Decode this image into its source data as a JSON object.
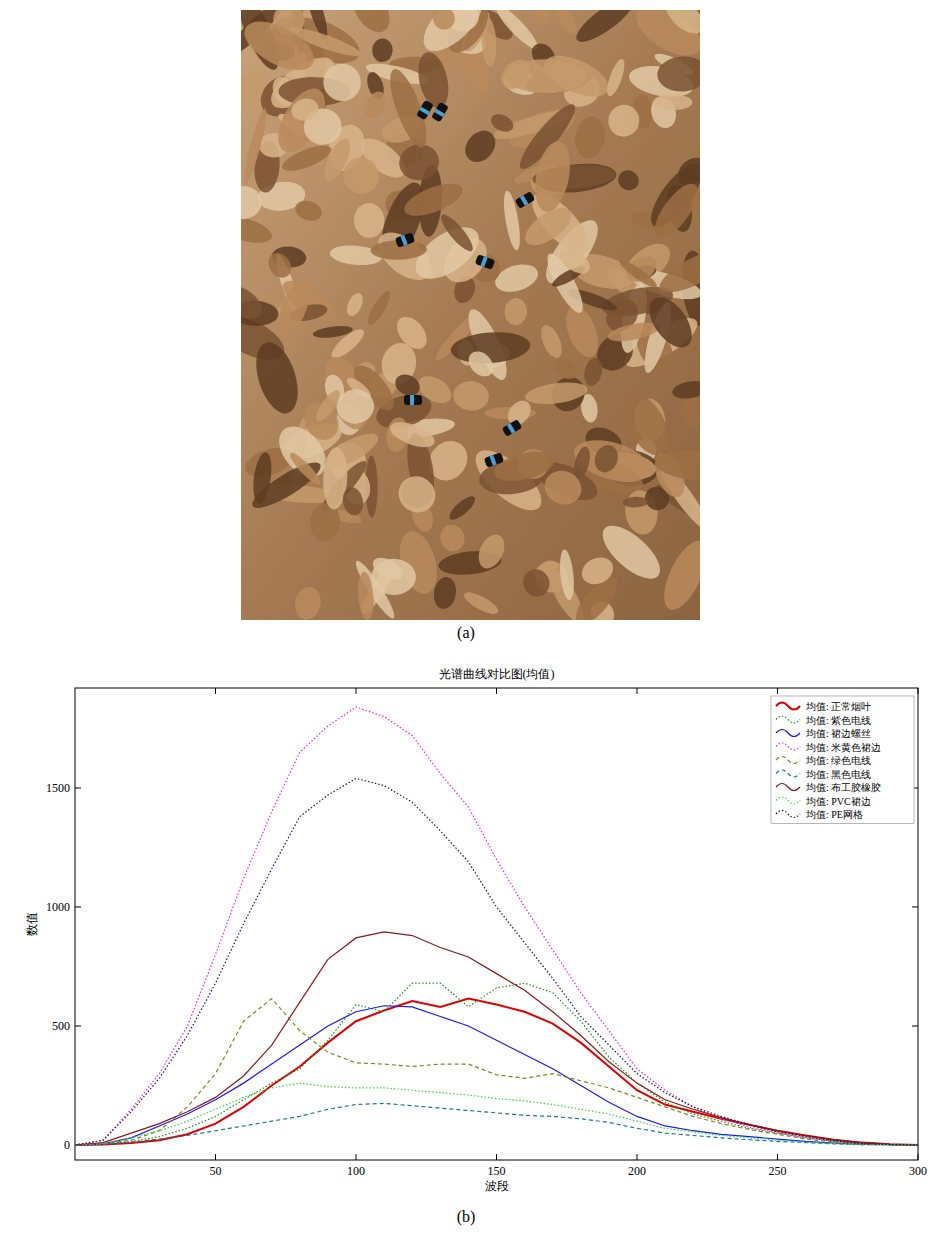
{
  "captions": [
    "(a)",
    "(b)"
  ],
  "chart_data": {
    "type": "line",
    "title": "光谱曲线对比图(均值)",
    "x_label": "波段",
    "y_label": "数值",
    "x": [
      0,
      10,
      20,
      30,
      40,
      50,
      60,
      70,
      80,
      90,
      100,
      110,
      120,
      130,
      140,
      150,
      160,
      170,
      180,
      190,
      200,
      210,
      220,
      230,
      240,
      250,
      260,
      270,
      280,
      290,
      300
    ],
    "series": [
      {
        "name": "均值: 正常烟叶",
        "color": "#e00000",
        "line_style": "solid",
        "values": [
          0,
          2,
          8,
          20,
          45,
          90,
          160,
          250,
          330,
          430,
          520,
          565,
          605,
          580,
          615,
          590,
          560,
          510,
          430,
          330,
          230,
          170,
          140,
          110,
          85,
          60,
          40,
          22,
          10,
          3,
          0
        ]
      },
      {
        "name": "均值: 紫色电线",
        "color": "#1f8f1f",
        "line_style": "dotted",
        "values": [
          0,
          5,
          15,
          35,
          70,
          120,
          190,
          260,
          320,
          440,
          590,
          560,
          680,
          680,
          580,
          660,
          680,
          640,
          520,
          370,
          260,
          180,
          130,
          100,
          70,
          50,
          30,
          15,
          5,
          2,
          0
        ]
      },
      {
        "name": "均值: 裙边螺丝",
        "color": "#1a1aff",
        "line_style": "solid",
        "values": [
          0,
          5,
          30,
          80,
          130,
          190,
          260,
          340,
          420,
          500,
          560,
          585,
          580,
          540,
          500,
          440,
          380,
          320,
          250,
          180,
          120,
          80,
          60,
          45,
          35,
          25,
          15,
          8,
          3,
          1,
          0
        ]
      },
      {
        "name": "均值: 米黄色裙边",
        "color": "#ee22ee",
        "line_style": "dotted",
        "values": [
          0,
          20,
          150,
          300,
          500,
          800,
          1120,
          1400,
          1650,
          1760,
          1840,
          1800,
          1720,
          1560,
          1420,
          1200,
          1000,
          820,
          640,
          480,
          320,
          230,
          160,
          110,
          75,
          50,
          30,
          15,
          5,
          2,
          0
        ]
      },
      {
        "name": "均值: 绿色电线",
        "color": "#7f8a1a",
        "line_style": "dashed",
        "values": [
          0,
          5,
          20,
          60,
          160,
          300,
          520,
          615,
          480,
          390,
          345,
          340,
          330,
          340,
          340,
          295,
          280,
          300,
          270,
          240,
          200,
          160,
          120,
          90,
          65,
          45,
          25,
          12,
          5,
          2,
          0
        ]
      },
      {
        "name": "均值: 黑色电线",
        "color": "#1a7a8a",
        "line_style": "dashed",
        "values": [
          0,
          3,
          12,
          25,
          40,
          60,
          80,
          100,
          120,
          150,
          170,
          175,
          165,
          155,
          145,
          135,
          125,
          120,
          110,
          95,
          70,
          50,
          40,
          30,
          22,
          15,
          10,
          5,
          2,
          1,
          0
        ]
      },
      {
        "name": "均值: 布工胶橡胶",
        "color": "#8b1a1a",
        "line_style": "solid",
        "values": [
          0,
          10,
          50,
          90,
          140,
          200,
          290,
          420,
          600,
          780,
          870,
          895,
          880,
          830,
          790,
          720,
          650,
          560,
          460,
          350,
          260,
          190,
          150,
          115,
          85,
          60,
          40,
          22,
          10,
          3,
          0
        ]
      },
      {
        "name": "均值: PVC裙边",
        "color": "#33dd33",
        "line_style": "dotted",
        "values": [
          0,
          5,
          30,
          60,
          100,
          150,
          200,
          240,
          260,
          245,
          240,
          240,
          230,
          220,
          210,
          195,
          185,
          170,
          150,
          130,
          100,
          70,
          55,
          40,
          30,
          20,
          12,
          6,
          2,
          1,
          0
        ]
      },
      {
        "name": "均值: PE网格",
        "color": "#1a1a6a",
        "line_style": "dotted",
        "values": [
          0,
          20,
          140,
          280,
          460,
          680,
          930,
          1160,
          1380,
          1470,
          1540,
          1510,
          1440,
          1320,
          1190,
          1000,
          850,
          700,
          540,
          420,
          300,
          220,
          160,
          120,
          85,
          55,
          35,
          18,
          6,
          2,
          0
        ]
      }
    ],
    "xlim": [
      0,
      300
    ],
    "xticks": [
      50,
      100,
      150,
      200,
      250,
      300
    ],
    "ylim": [
      -63,
      1920
    ],
    "yticks": [
      0,
      500,
      1000,
      1500
    ],
    "legend": "upper right",
    "grid": false
  }
}
